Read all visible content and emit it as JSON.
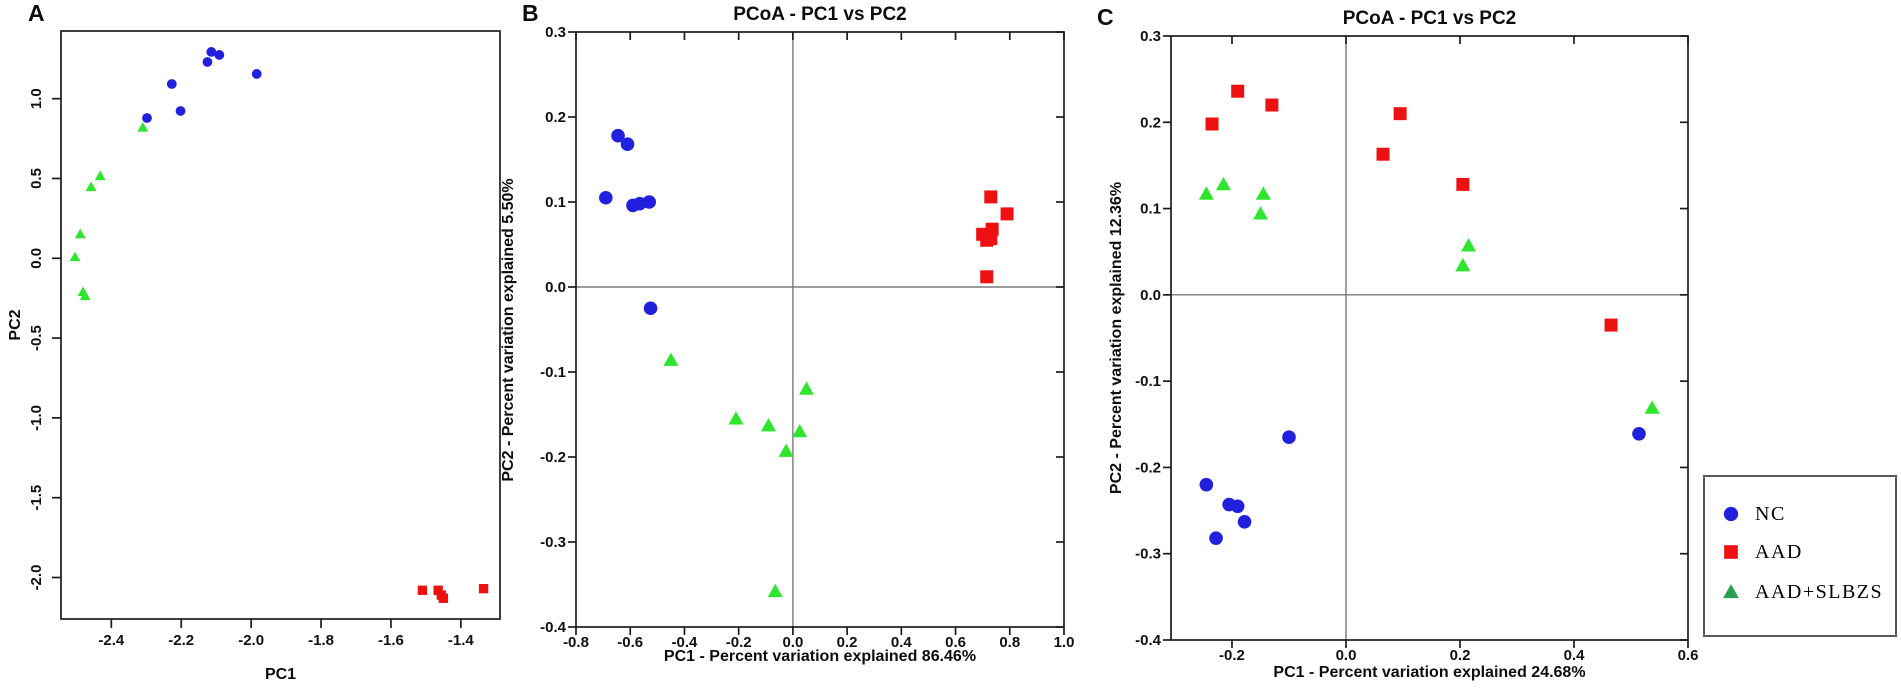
{
  "figure": {
    "background": "#ffffff",
    "frame_color": "#1c1c1c",
    "zero_line_color": "#7a7a7a"
  },
  "legend": {
    "items": [
      {
        "label": "NC",
        "marker": "circle",
        "color": "#2121dd"
      },
      {
        "label": "AAD",
        "marker": "square",
        "color": "#ee1111"
      },
      {
        "label": "AAD+SLBZS",
        "marker": "triangle",
        "color": "#2aa152"
      }
    ]
  },
  "chart_data": [
    {
      "panel_label": "A",
      "type": "scatter",
      "title": "",
      "xlabel": "PC1",
      "ylabel": "PC2",
      "xlim": [
        -2.544,
        -1.288
      ],
      "ylim": [
        -2.26,
        1.424
      ],
      "x_ticks": [
        -2.4,
        -2.2,
        -2.0,
        -1.8,
        -1.6,
        -1.4
      ],
      "y_ticks": [
        1.0,
        0.5,
        0.0,
        -0.5,
        -1.0,
        -1.5,
        -2.0
      ],
      "zero_lines": false,
      "series": [
        {
          "name": "NC",
          "marker": "circle",
          "color": "#2121dd",
          "points": [
            [
              -2.114,
              1.293
            ],
            [
              -2.091,
              1.274
            ],
            [
              -2.125,
              1.23
            ],
            [
              -1.984,
              1.155
            ],
            [
              -2.227,
              1.092
            ],
            [
              -2.202,
              0.923
            ],
            [
              -2.298,
              0.879
            ]
          ]
        },
        {
          "name": "AAD",
          "marker": "square",
          "color": "#ee1111",
          "points": [
            [
              -1.51,
              -2.08
            ],
            [
              -1.465,
              -2.08
            ],
            [
              -1.456,
              -2.11
            ],
            [
              -1.45,
              -2.13
            ],
            [
              -1.335,
              -2.07
            ]
          ]
        },
        {
          "name": "AAD+SLBZS",
          "marker": "triangle",
          "color": "#2de62d",
          "points": [
            [
              -2.31,
              0.82
            ],
            [
              -2.432,
              0.516
            ],
            [
              -2.458,
              0.447
            ],
            [
              -2.489,
              0.152
            ],
            [
              -2.504,
              0.008
            ],
            [
              -2.481,
              -0.211
            ],
            [
              -2.475,
              -0.236
            ]
          ]
        }
      ]
    },
    {
      "panel_label": "B",
      "type": "scatter",
      "title": "PCoA - PC1 vs PC2",
      "xlabel": "PC1 - Percent variation explained 86.46%",
      "ylabel": "PC2 - Percent variation explained 5.50%",
      "xlim": [
        -0.8,
        1.0
      ],
      "ylim": [
        -0.4,
        0.3
      ],
      "x_ticks": [
        -0.8,
        -0.6,
        -0.4,
        -0.2,
        0.0,
        0.2,
        0.4,
        0.6,
        0.8,
        1.0
      ],
      "y_ticks": [
        0.3,
        0.2,
        0.1,
        0.0,
        -0.1,
        -0.2,
        -0.3,
        -0.4
      ],
      "zero_lines": true,
      "series": [
        {
          "name": "NC",
          "marker": "circle",
          "color": "#2121dd",
          "points": [
            [
              -0.645,
              0.178
            ],
            [
              -0.61,
              0.168
            ],
            [
              -0.69,
              0.105
            ],
            [
              -0.59,
              0.096
            ],
            [
              -0.565,
              0.098
            ],
            [
              -0.53,
              0.1
            ],
            [
              -0.525,
              -0.025
            ]
          ]
        },
        {
          "name": "AAD",
          "marker": "square",
          "color": "#ee1111",
          "points": [
            [
              0.73,
              0.106
            ],
            [
              0.79,
              0.086
            ],
            [
              0.7,
              0.062
            ],
            [
              0.735,
              0.068
            ],
            [
              0.715,
              0.055
            ],
            [
              0.73,
              0.057
            ],
            [
              0.715,
              0.012
            ]
          ]
        },
        {
          "name": "AAD+SLBZS",
          "marker": "triangle",
          "color": "#2de62d",
          "points": [
            [
              -0.45,
              -0.086
            ],
            [
              -0.21,
              -0.155
            ],
            [
              -0.09,
              -0.163
            ],
            [
              0.05,
              -0.12
            ],
            [
              0.025,
              -0.17
            ],
            [
              -0.025,
              -0.193
            ],
            [
              -0.065,
              -0.358
            ]
          ]
        }
      ]
    },
    {
      "panel_label": "C",
      "type": "scatter",
      "title": "PCoA - PC1 vs PC2",
      "xlabel": "PC1 - Percent variation explained 24.68%",
      "ylabel": "PC2 - Percent variation explained 12.36%",
      "xlim": [
        -0.307,
        0.6
      ],
      "ylim": [
        -0.4,
        0.3
      ],
      "x_ticks": [
        -0.2,
        0.0,
        0.2,
        0.4,
        0.6
      ],
      "y_ticks": [
        0.3,
        0.2,
        0.1,
        0.0,
        -0.1,
        -0.2,
        -0.3,
        -0.4
      ],
      "zero_lines": true,
      "series": [
        {
          "name": "NC",
          "marker": "circle",
          "color": "#2121dd",
          "points": [
            [
              -0.245,
              -0.22
            ],
            [
              -0.205,
              -0.243
            ],
            [
              -0.19,
              -0.245
            ],
            [
              -0.178,
              -0.263
            ],
            [
              -0.228,
              -0.282
            ],
            [
              -0.1,
              -0.165
            ],
            [
              0.514,
              -0.161
            ]
          ]
        },
        {
          "name": "AAD",
          "marker": "square",
          "color": "#ee1111",
          "points": [
            [
              -0.235,
              0.198
            ],
            [
              -0.19,
              0.236
            ],
            [
              -0.13,
              0.22
            ],
            [
              0.065,
              0.163
            ],
            [
              0.095,
              0.21
            ],
            [
              0.205,
              0.128
            ],
            [
              0.465,
              -0.035
            ]
          ]
        },
        {
          "name": "AAD+SLBZS",
          "marker": "triangle",
          "color": "#2de62d",
          "points": [
            [
              -0.245,
              0.117
            ],
            [
              -0.215,
              0.128
            ],
            [
              -0.145,
              0.117
            ],
            [
              -0.15,
              0.094
            ],
            [
              0.215,
              0.057
            ],
            [
              0.205,
              0.034
            ],
            [
              0.537,
              -0.131
            ]
          ]
        }
      ]
    }
  ]
}
